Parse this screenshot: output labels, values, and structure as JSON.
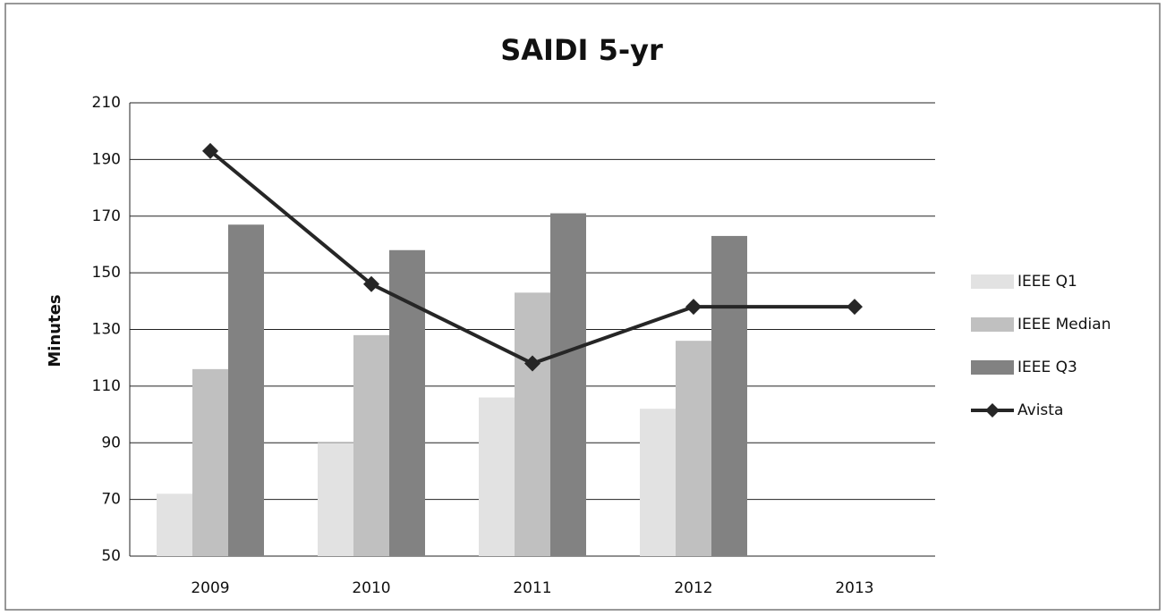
{
  "chart_data": {
    "type": "bar",
    "title": "SAIDI 5-yr",
    "y_label": "Minutes",
    "categories": [
      "2009",
      "2010",
      "2011",
      "2012",
      "2013"
    ],
    "series": [
      {
        "name": "IEEE Q1",
        "color": "#e2e2e2",
        "values": [
          72,
          90,
          106,
          102,
          null
        ]
      },
      {
        "name": "IEEE Median",
        "color": "#c0c0c0",
        "values": [
          116,
          128,
          143,
          126,
          null
        ]
      },
      {
        "name": "IEEE Q3",
        "color": "#828282",
        "values": [
          167,
          158,
          171,
          163,
          null
        ]
      },
      {
        "name": "Avista",
        "color": "#262626",
        "type": "line",
        "values": [
          193,
          146,
          118,
          138,
          138
        ]
      }
    ],
    "ylim": [
      50,
      210
    ],
    "yticks": [
      50,
      70,
      90,
      110,
      130,
      150,
      170,
      190,
      210
    ],
    "grid": true,
    "legend": "right"
  }
}
